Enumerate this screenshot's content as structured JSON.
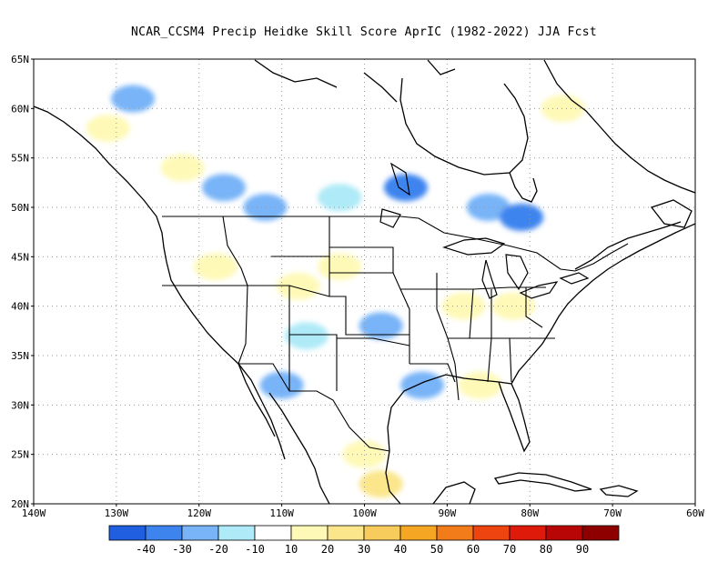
{
  "title": "NCAR_CCSM4 Precip Heidke Skill Score AprIC (1982-2022) JJA Fcst",
  "lat_labels": [
    "65N",
    "60N",
    "55N",
    "50N",
    "45N",
    "40N",
    "35N",
    "30N",
    "25N",
    "20N"
  ],
  "lon_labels": [
    "140W",
    "130W",
    "120W",
    "110W",
    "100W",
    "90W",
    "80W",
    "70W",
    "60W"
  ],
  "map_extent": {
    "lon": [
      -140,
      -60
    ],
    "lat": [
      20,
      65
    ]
  },
  "colorbar": {
    "labels": [
      "-40",
      "-30",
      "-20",
      "-10",
      "10",
      "20",
      "30",
      "40",
      "50",
      "60",
      "70",
      "80",
      "90"
    ],
    "colors": [
      "#1f5fe0",
      "#3d84ef",
      "#78b4f7",
      "#aeeaf7",
      "#ffffff",
      "#fff9b8",
      "#fbe68c",
      "#f7cc5c",
      "#f5a623",
      "#f27c1a",
      "#ee4410",
      "#de1a0a",
      "#b80606",
      "#8e0000"
    ]
  },
  "skill_patches": [
    {
      "lon": -128,
      "lat": 61,
      "value": -20
    },
    {
      "lon": -131,
      "lat": 58,
      "value": 20
    },
    {
      "lon": -122,
      "lat": 54,
      "value": 20
    },
    {
      "lon": -117,
      "lat": 52,
      "value": -20
    },
    {
      "lon": -112,
      "lat": 50,
      "value": -20
    },
    {
      "lon": -103,
      "lat": 51,
      "value": -10
    },
    {
      "lon": -95,
      "lat": 52,
      "value": -30
    },
    {
      "lon": -85,
      "lat": 50,
      "value": -20
    },
    {
      "lon": -81,
      "lat": 49,
      "value": -30
    },
    {
      "lon": -76,
      "lat": 60,
      "value": 20
    },
    {
      "lon": -118,
      "lat": 44,
      "value": 20
    },
    {
      "lon": -108,
      "lat": 42,
      "value": 20
    },
    {
      "lon": -103,
      "lat": 44,
      "value": 20
    },
    {
      "lon": -98,
      "lat": 38,
      "value": -20
    },
    {
      "lon": -93,
      "lat": 32,
      "value": -20
    },
    {
      "lon": -88,
      "lat": 40,
      "value": 20
    },
    {
      "lon": -82,
      "lat": 40,
      "value": 20
    },
    {
      "lon": -100,
      "lat": 25,
      "value": 20
    },
    {
      "lon": -98,
      "lat": 22,
      "value": 30
    },
    {
      "lon": -110,
      "lat": 32,
      "value": -20
    },
    {
      "lon": -107,
      "lat": 37,
      "value": -10
    },
    {
      "lon": -86,
      "lat": 32,
      "value": 20
    }
  ]
}
